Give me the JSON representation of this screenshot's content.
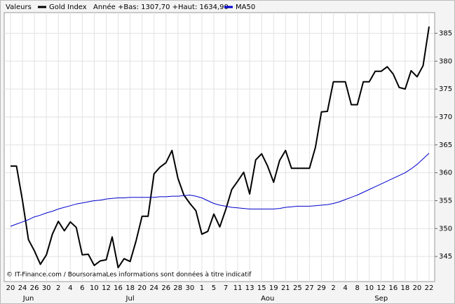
{
  "chart_data": {
    "type": "line",
    "legend_title": "Valeurs",
    "legend_note": "Année +Bas: 1307,70 +Haut: 1634,90",
    "source": "© IT-Finance.com / BoursoramaLes informations sont données à titre indicatif",
    "categories": [
      "20",
      null,
      "24",
      null,
      "26",
      null,
      "30",
      null,
      "2",
      null,
      "4",
      null,
      "6",
      null,
      "10",
      null,
      "12",
      null,
      "16",
      null,
      "18",
      null,
      "20",
      null,
      "24",
      null,
      "26",
      null,
      "28",
      null,
      "30",
      null,
      "1",
      null,
      "5",
      null,
      "7",
      null,
      "11",
      null,
      "13",
      null,
      "15",
      null,
      "19",
      null,
      "21",
      null,
      "25",
      null,
      "27",
      null,
      "29",
      null,
      "2",
      null,
      "4",
      null,
      "8",
      null,
      "10",
      null,
      "12",
      null,
      "16",
      null,
      "18",
      null,
      "20",
      null,
      "22"
    ],
    "months": [
      null,
      null,
      null,
      "Jun",
      null,
      null,
      null,
      null,
      null,
      null,
      null,
      null,
      null,
      null,
      null,
      null,
      null,
      null,
      null,
      null,
      "Jul",
      null,
      null,
      null,
      null,
      null,
      null,
      null,
      null,
      null,
      null,
      null,
      null,
      null,
      null,
      null,
      null,
      null,
      null,
      null,
      null,
      null,
      null,
      "Aou",
      null,
      null,
      null,
      null,
      null,
      null,
      null,
      null,
      null,
      null,
      null,
      null,
      null,
      null,
      null,
      null,
      null,
      null,
      "Sep",
      null,
      null,
      null,
      null,
      null,
      null,
      null,
      null
    ],
    "series": [
      {
        "name": "Gold Index",
        "color": "#000000",
        "width": 2,
        "values": [
          361.2,
          361.2,
          355,
          348,
          346,
          343.6,
          345.3,
          349,
          351.3,
          349.6,
          351.2,
          350.2,
          345.3,
          345.4,
          343.4,
          344.2,
          344.4,
          348.5,
          343,
          344.6,
          344.1,
          347.8,
          352.2,
          352.2,
          359.8,
          361,
          361.8,
          364,
          359,
          356,
          354.5,
          353.2,
          349,
          349.5,
          352.6,
          350.3,
          353.4,
          357,
          358.5,
          360.1,
          356.2,
          362.3,
          363.4,
          361.2,
          358.3,
          362.2,
          364,
          360.8,
          360.8,
          360.8,
          360.8,
          364.6,
          370.9,
          371,
          376.3,
          376.3,
          376.3,
          372.2,
          372.2,
          376.3,
          376.3,
          378.2,
          378.2,
          379,
          377.7,
          375.3,
          375,
          378.3,
          377.2,
          379.2,
          386.2
        ]
      },
      {
        "name": "MA50",
        "color": "#0000cc",
        "width": 1,
        "values": [
          350.4,
          350.8,
          351.2,
          351.6,
          352.1,
          352.4,
          352.8,
          353.1,
          353.5,
          353.8,
          354.1,
          354.4,
          354.6,
          354.8,
          355.0,
          355.1,
          355.3,
          355.4,
          355.5,
          355.5,
          355.6,
          355.6,
          355.6,
          355.6,
          355.6,
          355.7,
          355.7,
          355.8,
          355.8,
          355.9,
          356.0,
          355.8,
          355.5,
          355.0,
          354.5,
          354.2,
          354.0,
          353.8,
          353.7,
          353.6,
          353.5,
          353.5,
          353.5,
          353.5,
          353.5,
          353.6,
          353.8,
          353.9,
          354.0,
          354.0,
          354.0,
          354.1,
          354.2,
          354.3,
          354.5,
          354.8,
          355.2,
          355.6,
          356.0,
          356.5,
          357.0,
          357.5,
          358.0,
          358.5,
          359.0,
          359.5,
          360.0,
          360.7,
          361.5,
          362.5,
          363.5
        ]
      }
    ],
    "ylim": [
      340.5,
      388.7
    ],
    "yticks": [
      345,
      350,
      355,
      360,
      365,
      370,
      375,
      380,
      385
    ],
    "grid": true
  }
}
